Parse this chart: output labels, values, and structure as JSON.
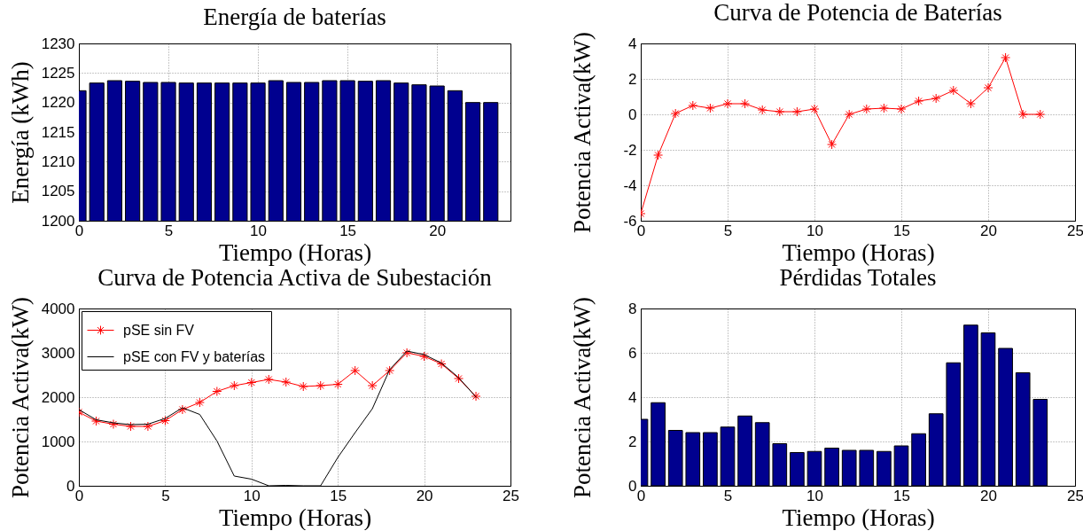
{
  "chart_data": [
    {
      "type": "bar",
      "title": "Energía de baterías",
      "xlabel": "Tiempo (Horas)",
      "ylabel": "Energía (kWh)",
      "x": [
        0,
        1,
        2,
        3,
        4,
        5,
        6,
        7,
        8,
        9,
        10,
        11,
        12,
        13,
        14,
        15,
        16,
        17,
        18,
        19,
        20,
        21,
        22,
        23
      ],
      "values": [
        1222.0,
        1223.3,
        1223.7,
        1223.6,
        1223.4,
        1223.4,
        1223.3,
        1223.3,
        1223.3,
        1223.3,
        1223.3,
        1223.7,
        1223.4,
        1223.4,
        1223.7,
        1223.7,
        1223.6,
        1223.7,
        1223.3,
        1223.0,
        1222.8,
        1222.0,
        1220.0,
        1220.0
      ],
      "color": "#00008f",
      "xlim": [
        0,
        24.1
      ],
      "xticks": [
        0,
        5,
        10,
        15,
        20
      ],
      "ylim": [
        1200,
        1230
      ],
      "yticks": [
        1200,
        1205,
        1210,
        1215,
        1220,
        1225,
        1230
      ],
      "grid": true
    },
    {
      "type": "line",
      "title": "Curva de Potencia de Baterías",
      "xlabel": "Tiempo (Horas)",
      "ylabel": "Potencia Activa(kW)",
      "x": [
        0,
        1,
        2,
        3,
        4,
        5,
        6,
        7,
        8,
        9,
        10,
        11,
        12,
        13,
        14,
        15,
        16,
        17,
        18,
        19,
        20,
        21,
        22,
        23
      ],
      "values": [
        -5.6,
        -2.3,
        0.05,
        0.5,
        0.35,
        0.6,
        0.6,
        0.25,
        0.15,
        0.15,
        0.3,
        -1.7,
        0,
        0.3,
        0.35,
        0.3,
        0.75,
        0.9,
        1.35,
        0.6,
        1.5,
        3.2,
        0,
        0
      ],
      "color": "#ff0000",
      "marker": "cross",
      "xlim": [
        0,
        25
      ],
      "xticks": [
        0,
        5,
        10,
        15,
        20,
        25
      ],
      "ylim": [
        -6,
        4
      ],
      "yticks": [
        -6,
        -4,
        -2,
        0,
        2,
        4
      ],
      "grid": true
    },
    {
      "type": "line",
      "title": "Curva de Potencia Activa de Subestación",
      "xlabel": "Tiempo (Horas)",
      "ylabel": "Potencia Activa(kW)",
      "x": [
        0,
        1,
        2,
        3,
        4,
        5,
        6,
        7,
        8,
        9,
        10,
        11,
        12,
        13,
        14,
        15,
        16,
        17,
        18,
        19,
        20,
        21,
        22,
        23
      ],
      "series": [
        {
          "name": "pSE sin FV",
          "color": "#ff0000",
          "marker": "cross",
          "values": [
            1660,
            1460,
            1390,
            1340,
            1340,
            1470,
            1720,
            1880,
            2130,
            2260,
            2330,
            2400,
            2340,
            2240,
            2260,
            2290,
            2600,
            2260,
            2600,
            3000,
            2920,
            2750,
            2420,
            2020
          ]
        },
        {
          "name": "pSE con FV y baterías",
          "color": "#000000",
          "marker": "none",
          "values": [
            1720,
            1490,
            1420,
            1380,
            1390,
            1520,
            1760,
            1610,
            1010,
            220,
            150,
            0,
            10,
            0,
            0,
            640,
            1200,
            1740,
            2620,
            3040,
            2960,
            2770,
            2440,
            2000
          ]
        }
      ],
      "legend": "top left",
      "xlim": [
        0,
        25
      ],
      "xticks": [
        0,
        5,
        10,
        15,
        20,
        25
      ],
      "ylim": [
        0,
        4000
      ],
      "yticks": [
        0,
        1000,
        2000,
        3000,
        4000
      ],
      "grid": true
    },
    {
      "type": "bar",
      "title": "Pérdidas Totales",
      "xlabel": "Tiempo (Horas)",
      "ylabel": "Potencia Activa(kW)",
      "x": [
        0,
        1,
        2,
        3,
        4,
        5,
        6,
        7,
        8,
        9,
        10,
        11,
        12,
        13,
        14,
        15,
        16,
        17,
        18,
        19,
        20,
        21,
        22,
        23
      ],
      "values": [
        3.0,
        3.75,
        2.5,
        2.4,
        2.4,
        2.65,
        3.15,
        2.85,
        1.9,
        1.5,
        1.55,
        1.7,
        1.6,
        1.6,
        1.55,
        1.8,
        2.35,
        3.25,
        5.55,
        7.25,
        6.9,
        6.2,
        5.1,
        3.9
      ],
      "color": "#00008f",
      "xlim": [
        0,
        25
      ],
      "xticks": [
        0,
        5,
        10,
        15,
        20,
        25
      ],
      "ylim": [
        0,
        8
      ],
      "yticks": [
        0,
        2,
        4,
        6,
        8
      ],
      "grid": true
    }
  ]
}
